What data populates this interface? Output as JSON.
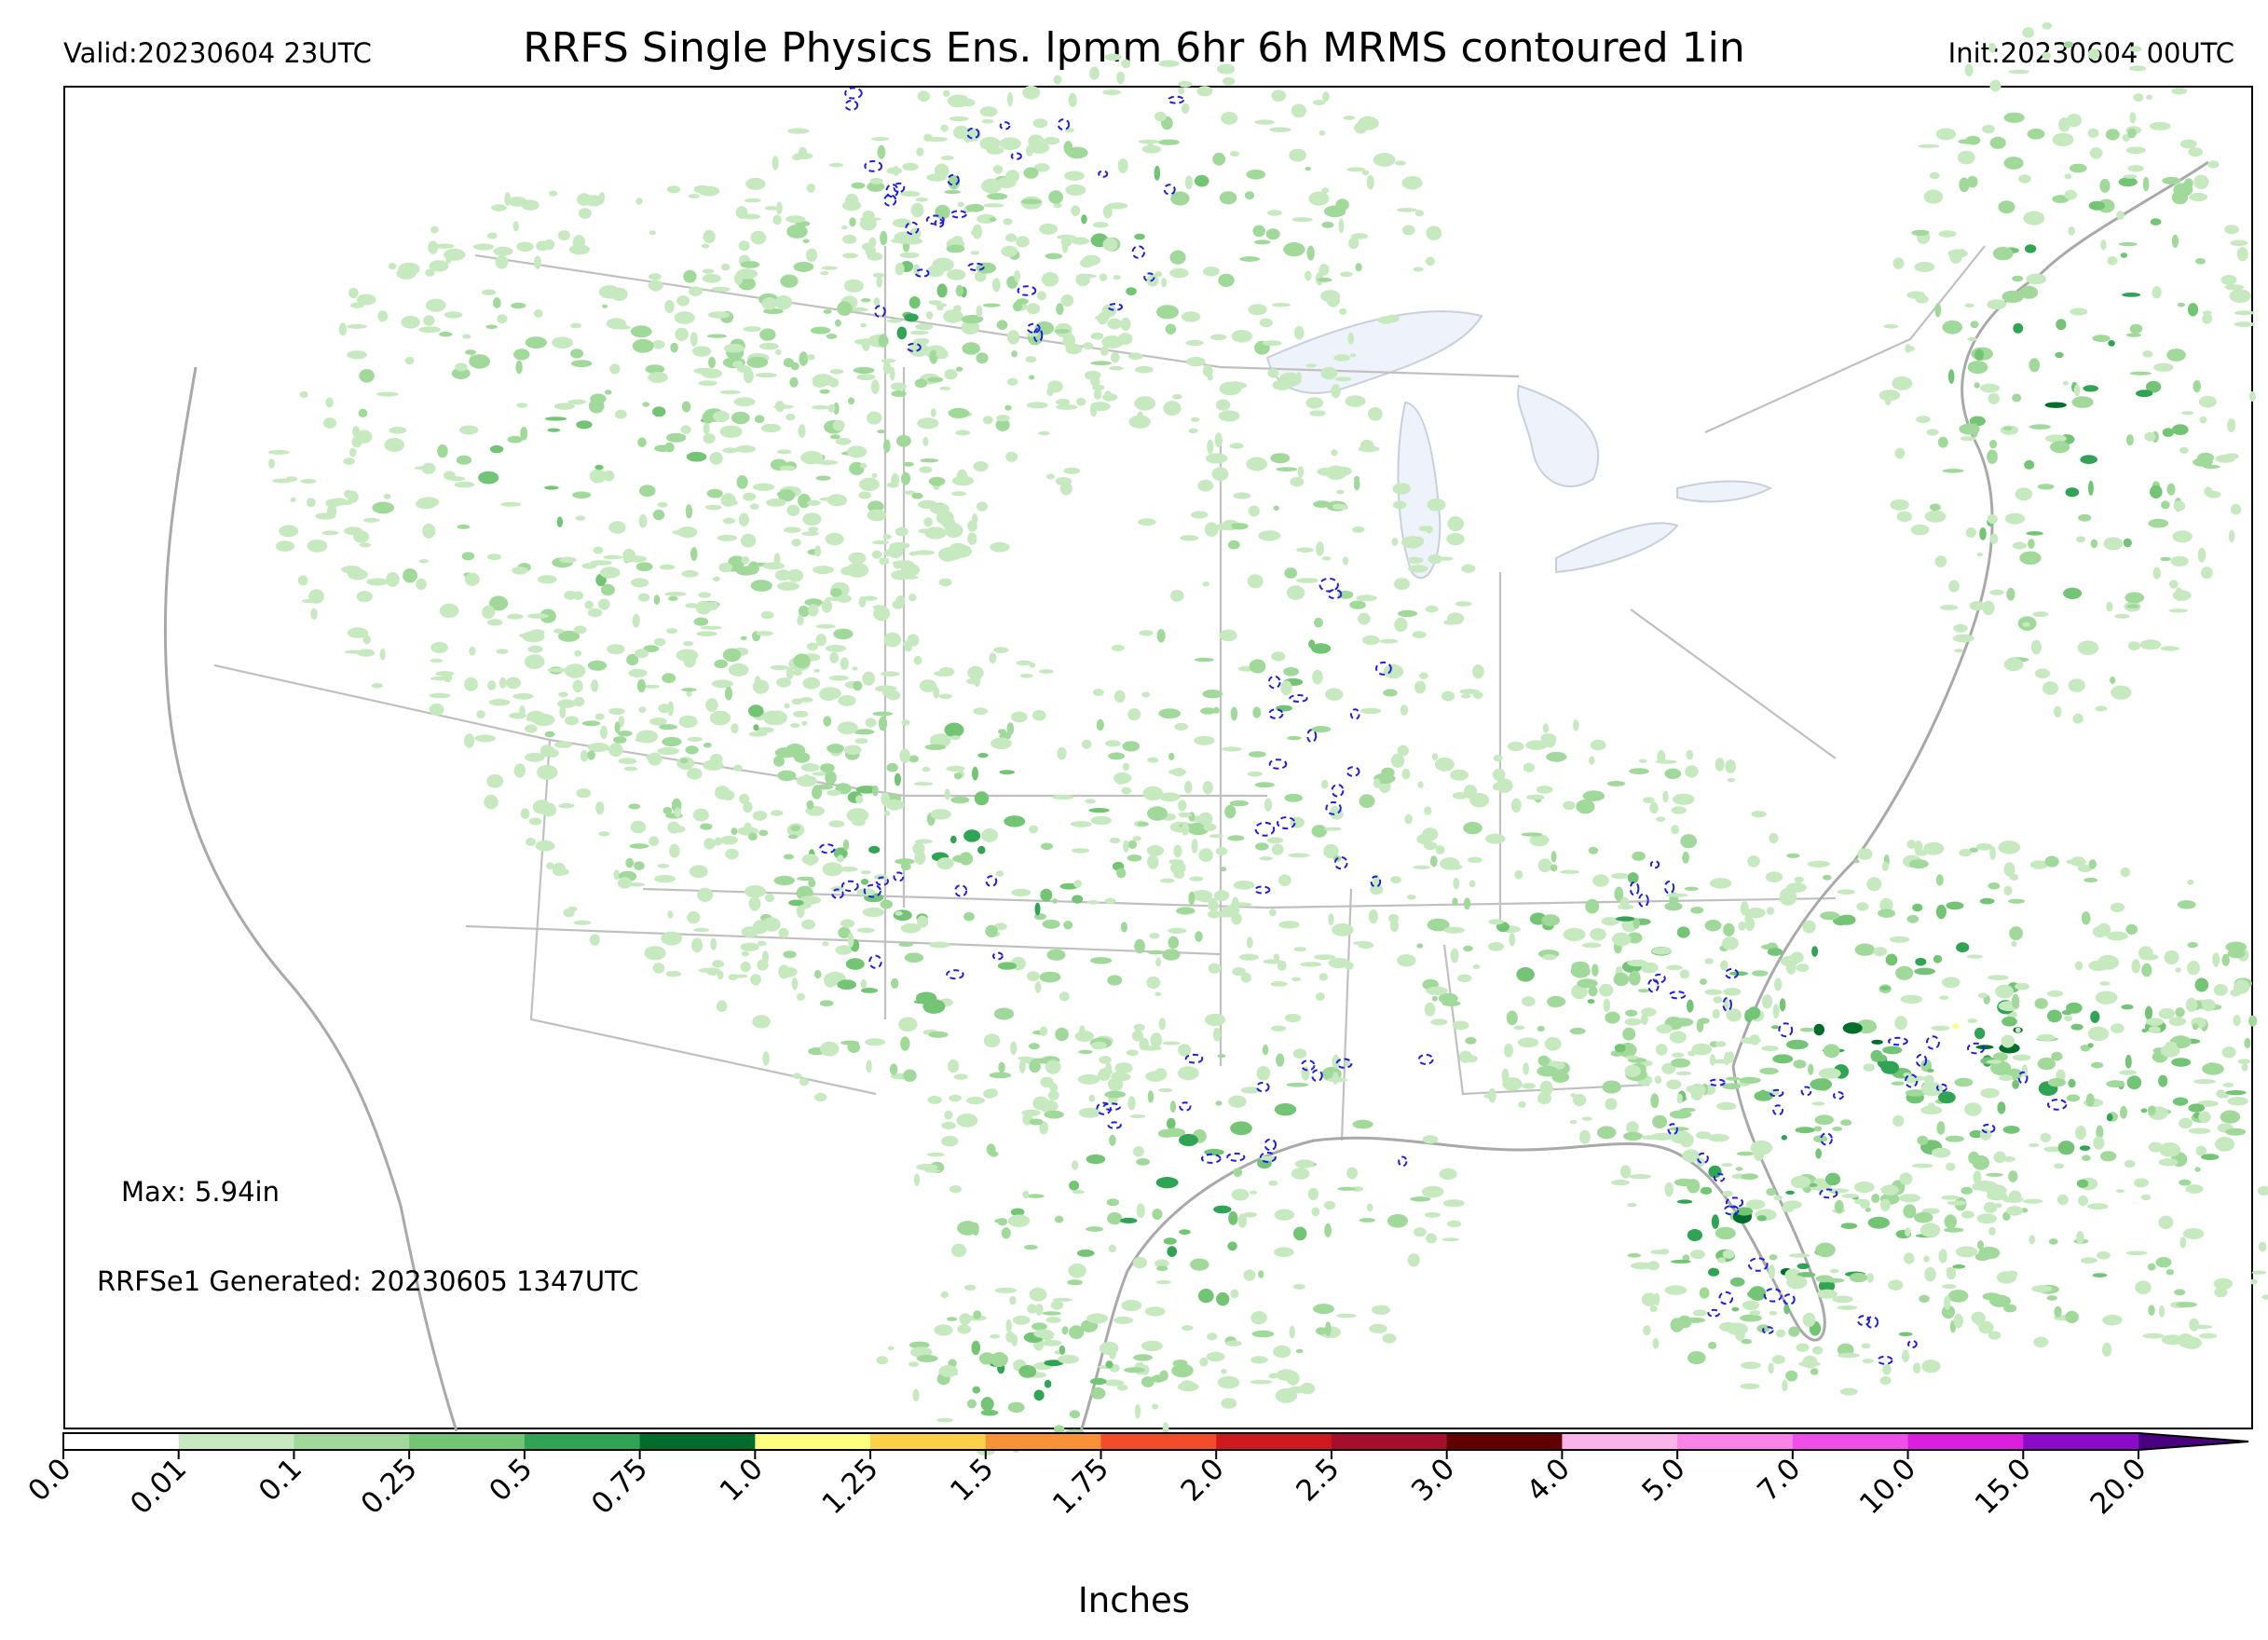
{
  "header": {
    "valid": "Valid:20230604 23UTC",
    "title": "RRFS Single Physics Ens. lpmm 6hr 6h MRMS contoured 1in",
    "init": "Init:20230604 00UTC"
  },
  "notes": {
    "max": "Max: 5.94in",
    "generated": "RRFSe1 Generated: 20230605 1347UTC"
  },
  "colorbar": {
    "label": "Inches",
    "ticks": [
      "0.0",
      "0.01",
      "0.1",
      "0.25",
      "0.5",
      "0.75",
      "1.0",
      "1.25",
      "1.5",
      "1.75",
      "2.0",
      "2.5",
      "3.0",
      "4.0",
      "5.0",
      "7.0",
      "10.0",
      "15.0",
      "20.0"
    ],
    "colors": [
      "#ffffff",
      "#c7e9c0",
      "#a1d99b",
      "#74c476",
      "#31a354",
      "#006d2c",
      "#ffff80",
      "#fdd049",
      "#f7923a",
      "#f24d2a",
      "#ce1a1e",
      "#a50f2d",
      "#600000",
      "#fbb3ea",
      "#f983e6",
      "#ee4fe6",
      "#da1fdf",
      "#8a0cc6"
    ],
    "extend_color": "#4b0082"
  },
  "map": {
    "colors": {
      "state_border": "#c0c0c0",
      "coast": "#a9a9a9",
      "lake": "#eef2fa",
      "mrms_contour": "#1f1fe0"
    }
  }
}
